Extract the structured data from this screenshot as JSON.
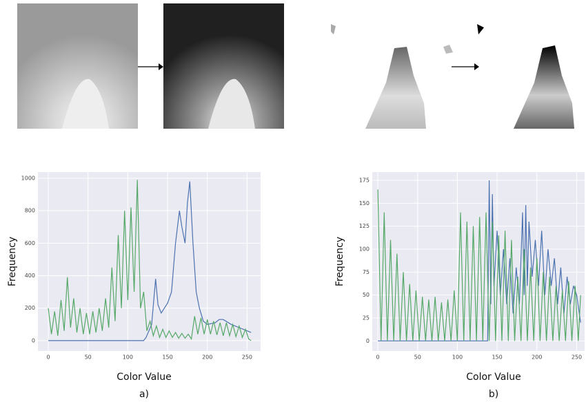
{
  "chart_data": [
    {
      "type": "line",
      "x_label": "Color Value",
      "y_label": "Frequency",
      "caption": "a)",
      "xlim": [
        -13,
        267
      ],
      "ylim": [
        -64,
        1038
      ],
      "xticks": [
        0,
        50,
        100,
        150,
        200,
        250
      ],
      "yticks": [
        0,
        200,
        400,
        600,
        800,
        1000
      ],
      "grid": true,
      "series": [
        {
          "color": "#4c72b0",
          "x": [
            0,
            120,
            123,
            130,
            135,
            138,
            142,
            150,
            155,
            160,
            165,
            168,
            172,
            175,
            178,
            182,
            186,
            190,
            195,
            200,
            210,
            215,
            220,
            230,
            240,
            250,
            255
          ],
          "values": [
            0,
            0,
            20,
            100,
            380,
            220,
            170,
            230,
            300,
            600,
            800,
            700,
            600,
            850,
            980,
            600,
            300,
            200,
            120,
            100,
            110,
            130,
            130,
            100,
            80,
            60,
            50
          ]
        },
        {
          "color": "#55a868",
          "x": [
            0,
            4,
            8,
            12,
            16,
            20,
            24,
            28,
            32,
            36,
            40,
            44,
            48,
            52,
            56,
            60,
            64,
            68,
            72,
            76,
            80,
            84,
            88,
            92,
            96,
            100,
            104,
            108,
            112,
            116,
            120,
            124,
            128,
            132,
            136,
            140,
            144,
            148,
            152,
            156,
            160,
            164,
            168,
            172,
            176,
            180,
            184,
            188,
            192,
            196,
            200,
            204,
            208,
            212,
            216,
            220,
            224,
            228,
            232,
            236,
            240,
            244,
            248,
            252,
            255
          ],
          "values": [
            200,
            40,
            180,
            30,
            250,
            60,
            390,
            80,
            260,
            50,
            200,
            40,
            170,
            40,
            180,
            50,
            200,
            60,
            260,
            80,
            450,
            120,
            650,
            200,
            800,
            250,
            820,
            300,
            990,
            200,
            300,
            60,
            120,
            30,
            90,
            20,
            70,
            20,
            60,
            20,
            50,
            15,
            45,
            15,
            40,
            10,
            150,
            40,
            140,
            40,
            130,
            40,
            120,
            35,
            110,
            30,
            110,
            30,
            100,
            25,
            90,
            20,
            70,
            10,
            0
          ]
        }
      ]
    },
    {
      "type": "line",
      "x_label": "Color Value",
      "y_label": "Frequency",
      "caption": "b)",
      "xlim": [
        -7,
        260
      ],
      "ylim": [
        -11,
        184
      ],
      "xticks": [
        0,
        50,
        100,
        150,
        200,
        250
      ],
      "yticks": [
        0,
        25,
        50,
        75,
        100,
        125,
        150,
        175
      ],
      "grid": true,
      "series": [
        {
          "color": "#4c72b0",
          "x": [
            0,
            138,
            140,
            142,
            144,
            146,
            150,
            154,
            158,
            162,
            166,
            170,
            174,
            178,
            182,
            184,
            186,
            188,
            190,
            194,
            198,
            202,
            206,
            210,
            214,
            218,
            222,
            226,
            230,
            234,
            238,
            242,
            246,
            250,
            255
          ],
          "values": [
            0,
            0,
            175,
            40,
            160,
            60,
            120,
            50,
            100,
            40,
            90,
            30,
            80,
            40,
            140,
            50,
            148,
            60,
            130,
            70,
            110,
            60,
            120,
            50,
            100,
            60,
            90,
            40,
            80,
            30,
            70,
            40,
            60,
            50,
            20
          ]
        },
        {
          "color": "#55a868",
          "x": [
            0,
            4,
            8,
            12,
            16,
            20,
            24,
            28,
            32,
            36,
            40,
            44,
            48,
            52,
            56,
            60,
            64,
            68,
            72,
            76,
            80,
            84,
            88,
            92,
            96,
            100,
            104,
            108,
            112,
            116,
            120,
            124,
            128,
            132,
            136,
            140,
            144,
            148,
            152,
            156,
            160,
            164,
            168,
            172,
            176,
            180,
            184,
            188,
            192,
            196,
            200,
            204,
            208,
            212,
            216,
            220,
            224,
            228,
            232,
            236,
            240,
            244,
            248,
            252,
            255
          ],
          "values": [
            165,
            0,
            140,
            0,
            110,
            0,
            95,
            0,
            75,
            0,
            62,
            0,
            55,
            0,
            48,
            0,
            45,
            0,
            48,
            0,
            42,
            0,
            45,
            0,
            55,
            0,
            140,
            0,
            130,
            0,
            125,
            0,
            135,
            0,
            140,
            0,
            130,
            0,
            115,
            0,
            120,
            0,
            110,
            0,
            70,
            0,
            100,
            0,
            80,
            0,
            90,
            0,
            75,
            0,
            70,
            0,
            60,
            0,
            55,
            0,
            65,
            0,
            60,
            0,
            50
          ]
        }
      ]
    }
  ]
}
